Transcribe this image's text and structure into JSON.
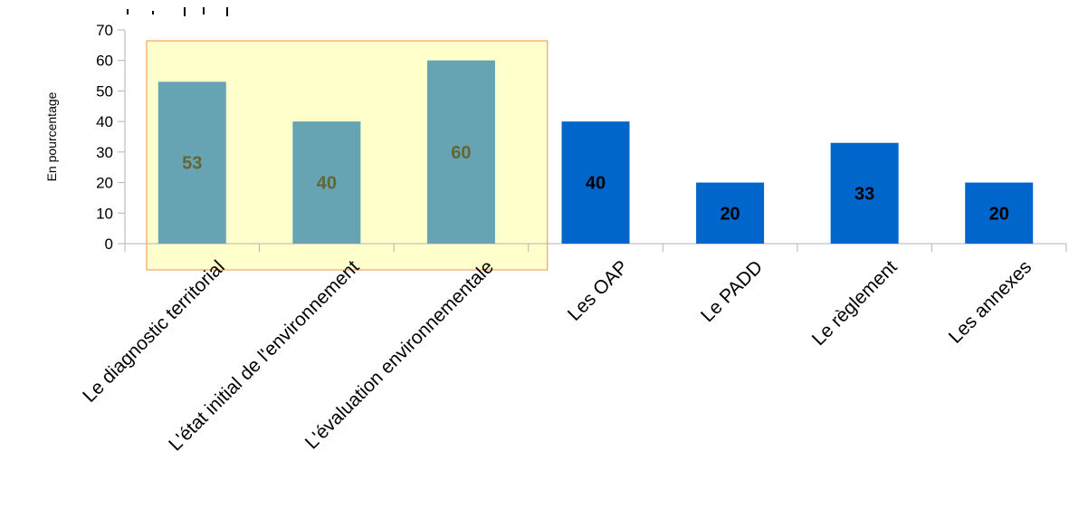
{
  "chart_data": {
    "type": "bar",
    "ylabel": "En pourcentage",
    "ylim": [
      0,
      70
    ],
    "yticks": [
      0,
      10,
      20,
      30,
      40,
      50,
      60,
      70
    ],
    "grid": false,
    "categories": [
      "Le diagnostic territorial",
      "L'état initial de l'environnement",
      "L'évaluation environnementale",
      "Les OAP",
      "Le PADD",
      "Le règlement",
      "Les annexes"
    ],
    "values": [
      53,
      40,
      60,
      40,
      20,
      33,
      20
    ],
    "highlight": {
      "categories": [
        "Le diagnostic territorial",
        "L'état initial de l'environnement",
        "L'évaluation environnementale"
      ],
      "fill_color": "#ffffcc",
      "border_color": "#f4a460"
    },
    "colors": {
      "bar_highlighted": "#66a3b3",
      "bar_default": "#0066cc",
      "label_highlighted": "#666633",
      "label_default": "#000000",
      "axis": "#b3b3b3"
    }
  }
}
